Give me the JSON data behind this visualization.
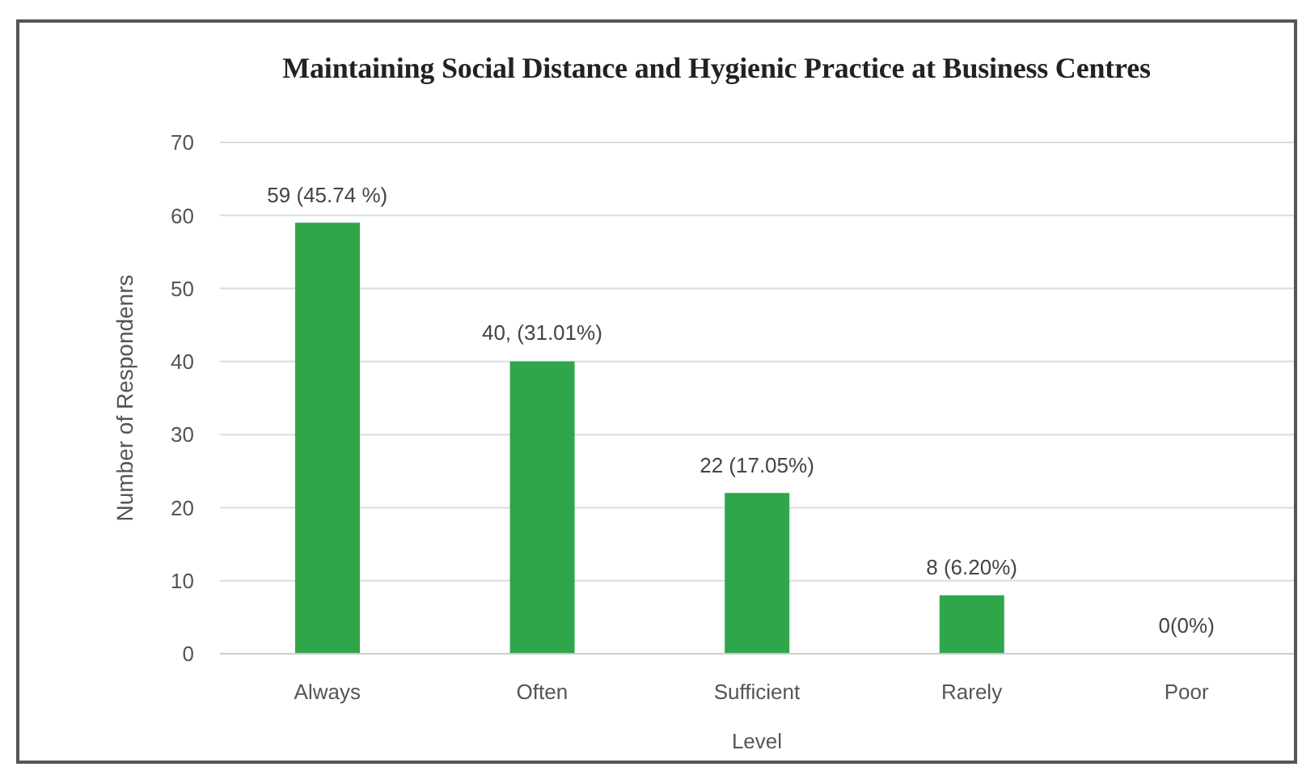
{
  "chart_data": {
    "type": "bar",
    "title": "Maintaining Social Distance and Hygienic Practice at Business Centres",
    "xlabel": "Level",
    "ylabel": "Number of Respondenrs",
    "categories": [
      "Always",
      "Often",
      "Sufficient",
      "Rarely",
      "Poor"
    ],
    "values": [
      59,
      40,
      22,
      8,
      0
    ],
    "color": "#30a64a",
    "value_labels": [
      "59 (45.74 %)",
      "40, (31.01%)",
      "22 (17.05%)",
      "8 (6.20%)",
      "0(0%)"
    ],
    "ylim": [
      0,
      70
    ],
    "yticks": [
      0,
      10,
      20,
      30,
      40,
      50,
      60,
      70
    ],
    "grid": "y"
  }
}
